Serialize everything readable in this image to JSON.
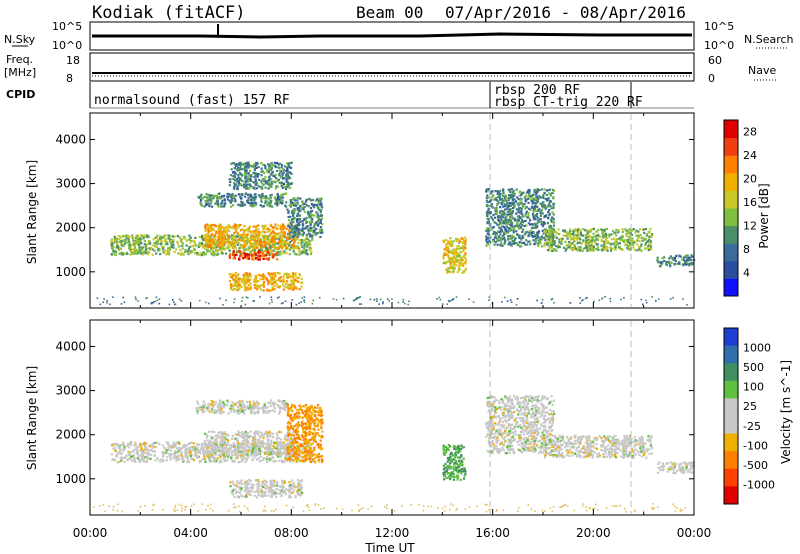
{
  "header": {
    "station": "Kodiak (fitACF)",
    "beam": "Beam 00",
    "date_range": "07/Apr/2016 - 08/Apr/2016"
  },
  "top_panels": {
    "nsky_label": "N.Sky",
    "nsky_ticks": [
      "10^5",
      "10^0"
    ],
    "nsearch_label": "N.Search",
    "nsearch_ticks": [
      "10^5",
      "10^0"
    ],
    "freq_label_1": "Freq.",
    "freq_label_2": "[MHz]",
    "freq_ticks": [
      "18",
      "8"
    ],
    "nave_label": "Nave",
    "nave_ticks": [
      "60",
      "0"
    ],
    "cpid_label": "CPID",
    "cpid_entries": [
      {
        "text": "normalsound (fast) 157 RF",
        "start_hour": 0.0
      },
      {
        "text": "rbsp 200 RF",
        "start_hour": 16.0
      },
      {
        "text": "rbsp CT-trig 220 RF",
        "start_hour": 16.0
      }
    ],
    "cpid_boundaries_hours": [
      16.0,
      21.5
    ]
  },
  "colors": {
    "power_scale": [
      "#1010ff",
      "#2c4ea0",
      "#3b6b9a",
      "#4a8f6a",
      "#7fbf3f",
      "#c9c92a",
      "#f0b000",
      "#ff7f00",
      "#f04010",
      "#e00000"
    ],
    "velocity_scale": [
      "#1f3fd0",
      "#2f6fb0",
      "#3f8f60",
      "#5fbf3f",
      "#c8c8c8",
      "#c8c8c8",
      "#f0b000",
      "#ff7f00",
      "#ff4000",
      "#e00000"
    ]
  },
  "chart_data": [
    {
      "type": "heatmap",
      "name": "power",
      "xlabel": "",
      "ylabel": "Slant Range [km]",
      "xlim_hours": [
        0,
        24
      ],
      "ylim_km": [
        180,
        4600
      ],
      "yticks": [
        1000,
        2000,
        3000,
        4000
      ],
      "colorbar": {
        "label": "Power [dB]",
        "ticks": [
          4,
          8,
          12,
          16,
          20,
          24,
          28
        ],
        "range": [
          0,
          30
        ]
      },
      "echo_regions": [
        {
          "t0": 0.8,
          "t1": 8.8,
          "r0": 1400,
          "r1": 1850,
          "level": 12
        },
        {
          "t0": 4.5,
          "t1": 8.2,
          "r0": 1550,
          "r1": 2100,
          "level": 18
        },
        {
          "t0": 5.5,
          "t1": 7.5,
          "r0": 1300,
          "r1": 1500,
          "level": 24
        },
        {
          "t0": 5.5,
          "t1": 8.4,
          "r0": 600,
          "r1": 1000,
          "level": 18
        },
        {
          "t0": 4.2,
          "t1": 7.8,
          "r0": 2500,
          "r1": 2800,
          "level": 8
        },
        {
          "t0": 5.5,
          "t1": 8.0,
          "r0": 2900,
          "r1": 3500,
          "level": 8
        },
        {
          "t0": 7.8,
          "t1": 9.2,
          "r0": 1800,
          "r1": 2700,
          "level": 8
        },
        {
          "t0": 14.0,
          "t1": 14.9,
          "r0": 1000,
          "r1": 1800,
          "level": 16
        },
        {
          "t0": 15.7,
          "t1": 18.4,
          "r0": 1600,
          "r1": 2900,
          "level": 8
        },
        {
          "t0": 18.0,
          "t1": 22.3,
          "r0": 1500,
          "r1": 2000,
          "level": 12
        },
        {
          "t0": 22.5,
          "t1": 24.0,
          "r0": 1150,
          "r1": 1400,
          "level": 8
        }
      ]
    },
    {
      "type": "heatmap",
      "name": "velocity",
      "xlabel": "Time UT",
      "ylabel": "Slant Range [km]",
      "xticks": [
        "00:00",
        "04:00",
        "08:00",
        "12:00",
        "16:00",
        "20:00",
        "00:00"
      ],
      "xlim_hours": [
        0,
        24
      ],
      "ylim_km": [
        180,
        4600
      ],
      "yticks": [
        1000,
        2000,
        3000,
        4000
      ],
      "colorbar": {
        "label": "Velocity [m s^-1]",
        "ticks": [
          "1000",
          "500",
          "100",
          "25",
          "-25",
          "-100",
          "-500",
          "-1000"
        ]
      },
      "echo_regions": [
        {
          "t0": 0.8,
          "t1": 8.8,
          "r0": 1400,
          "r1": 1850,
          "velocity": 0
        },
        {
          "t0": 4.5,
          "t1": 8.2,
          "r0": 1550,
          "r1": 2100,
          "velocity": 0
        },
        {
          "t0": 5.5,
          "t1": 8.4,
          "r0": 600,
          "r1": 1000,
          "velocity": 0
        },
        {
          "t0": 4.2,
          "t1": 7.8,
          "r0": 2500,
          "r1": 2800,
          "velocity": 0
        },
        {
          "t0": 7.8,
          "t1": 9.2,
          "r0": 1400,
          "r1": 2700,
          "velocity": -100
        },
        {
          "t0": 14.0,
          "t1": 14.9,
          "r0": 1000,
          "r1": 1800,
          "velocity": 100
        },
        {
          "t0": 15.7,
          "t1": 18.4,
          "r0": 1600,
          "r1": 2900,
          "velocity": 0
        },
        {
          "t0": 18.0,
          "t1": 22.3,
          "r0": 1500,
          "r1": 2000,
          "velocity": 0
        },
        {
          "t0": 22.5,
          "t1": 24.0,
          "r0": 1150,
          "r1": 1400,
          "velocity": 0
        }
      ]
    }
  ]
}
